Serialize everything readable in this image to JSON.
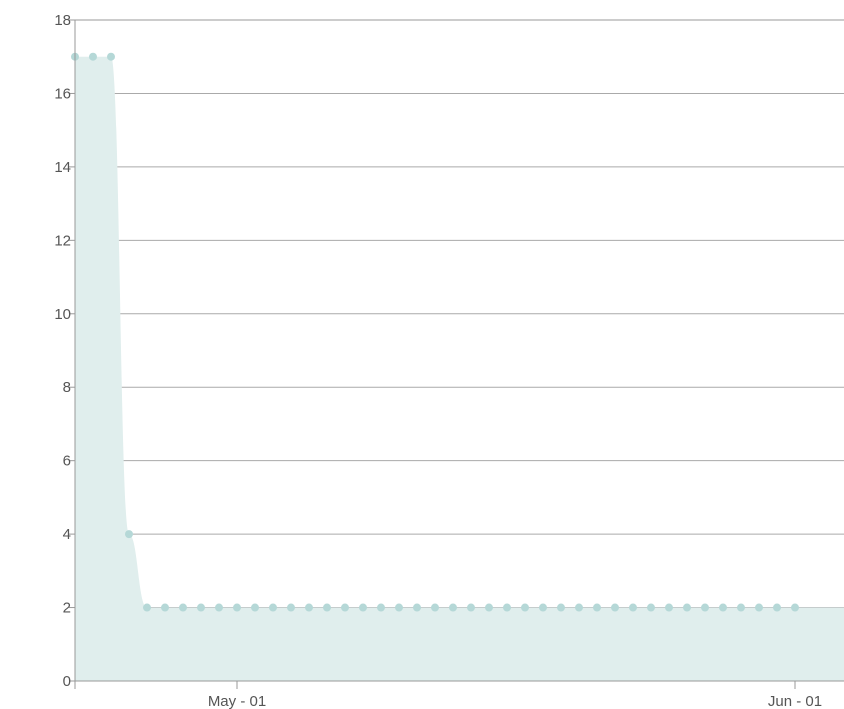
{
  "chart_data": {
    "type": "area",
    "title": "",
    "xlabel": "",
    "ylabel": "",
    "ylim": [
      0,
      18
    ],
    "y_ticks": [
      "0",
      "2",
      "4",
      "6",
      "8",
      "10",
      "12",
      "14",
      "16",
      "18"
    ],
    "x_ticks": [
      "May - 01",
      "Jun - 01"
    ],
    "grid": true,
    "legend": "none",
    "colors": {
      "fill": "#e0eeed",
      "point": "#b5d8d7",
      "grid": "#aaaaaa",
      "axis": "#999999"
    },
    "series": [
      {
        "x": [
          "Apr 22",
          "Apr 23",
          "Apr 24",
          "Apr 25",
          "Apr 26",
          "Apr 27",
          "Apr 28",
          "Apr 29",
          "Apr 30",
          "May 01",
          "May 02",
          "May 03",
          "May 04",
          "May 05",
          "May 06",
          "May 07",
          "May 08",
          "May 09",
          "May 10",
          "May 11",
          "May 12",
          "May 13",
          "May 14",
          "May 15",
          "May 16",
          "May 17",
          "May 18",
          "May 19",
          "May 20",
          "May 21",
          "May 22",
          "May 23",
          "May 24",
          "May 25",
          "May 26",
          "May 27",
          "May 28",
          "May 29",
          "May 30",
          "May 31",
          "Jun 01"
        ],
        "values": [
          17,
          17,
          17,
          4,
          2,
          2,
          2,
          2,
          2,
          2,
          2,
          2,
          2,
          2,
          2,
          2,
          2,
          2,
          2,
          2,
          2,
          2,
          2,
          2,
          2,
          2,
          2,
          2,
          2,
          2,
          2,
          2,
          2,
          2,
          2,
          2,
          2,
          2,
          2,
          2,
          2
        ]
      }
    ]
  }
}
